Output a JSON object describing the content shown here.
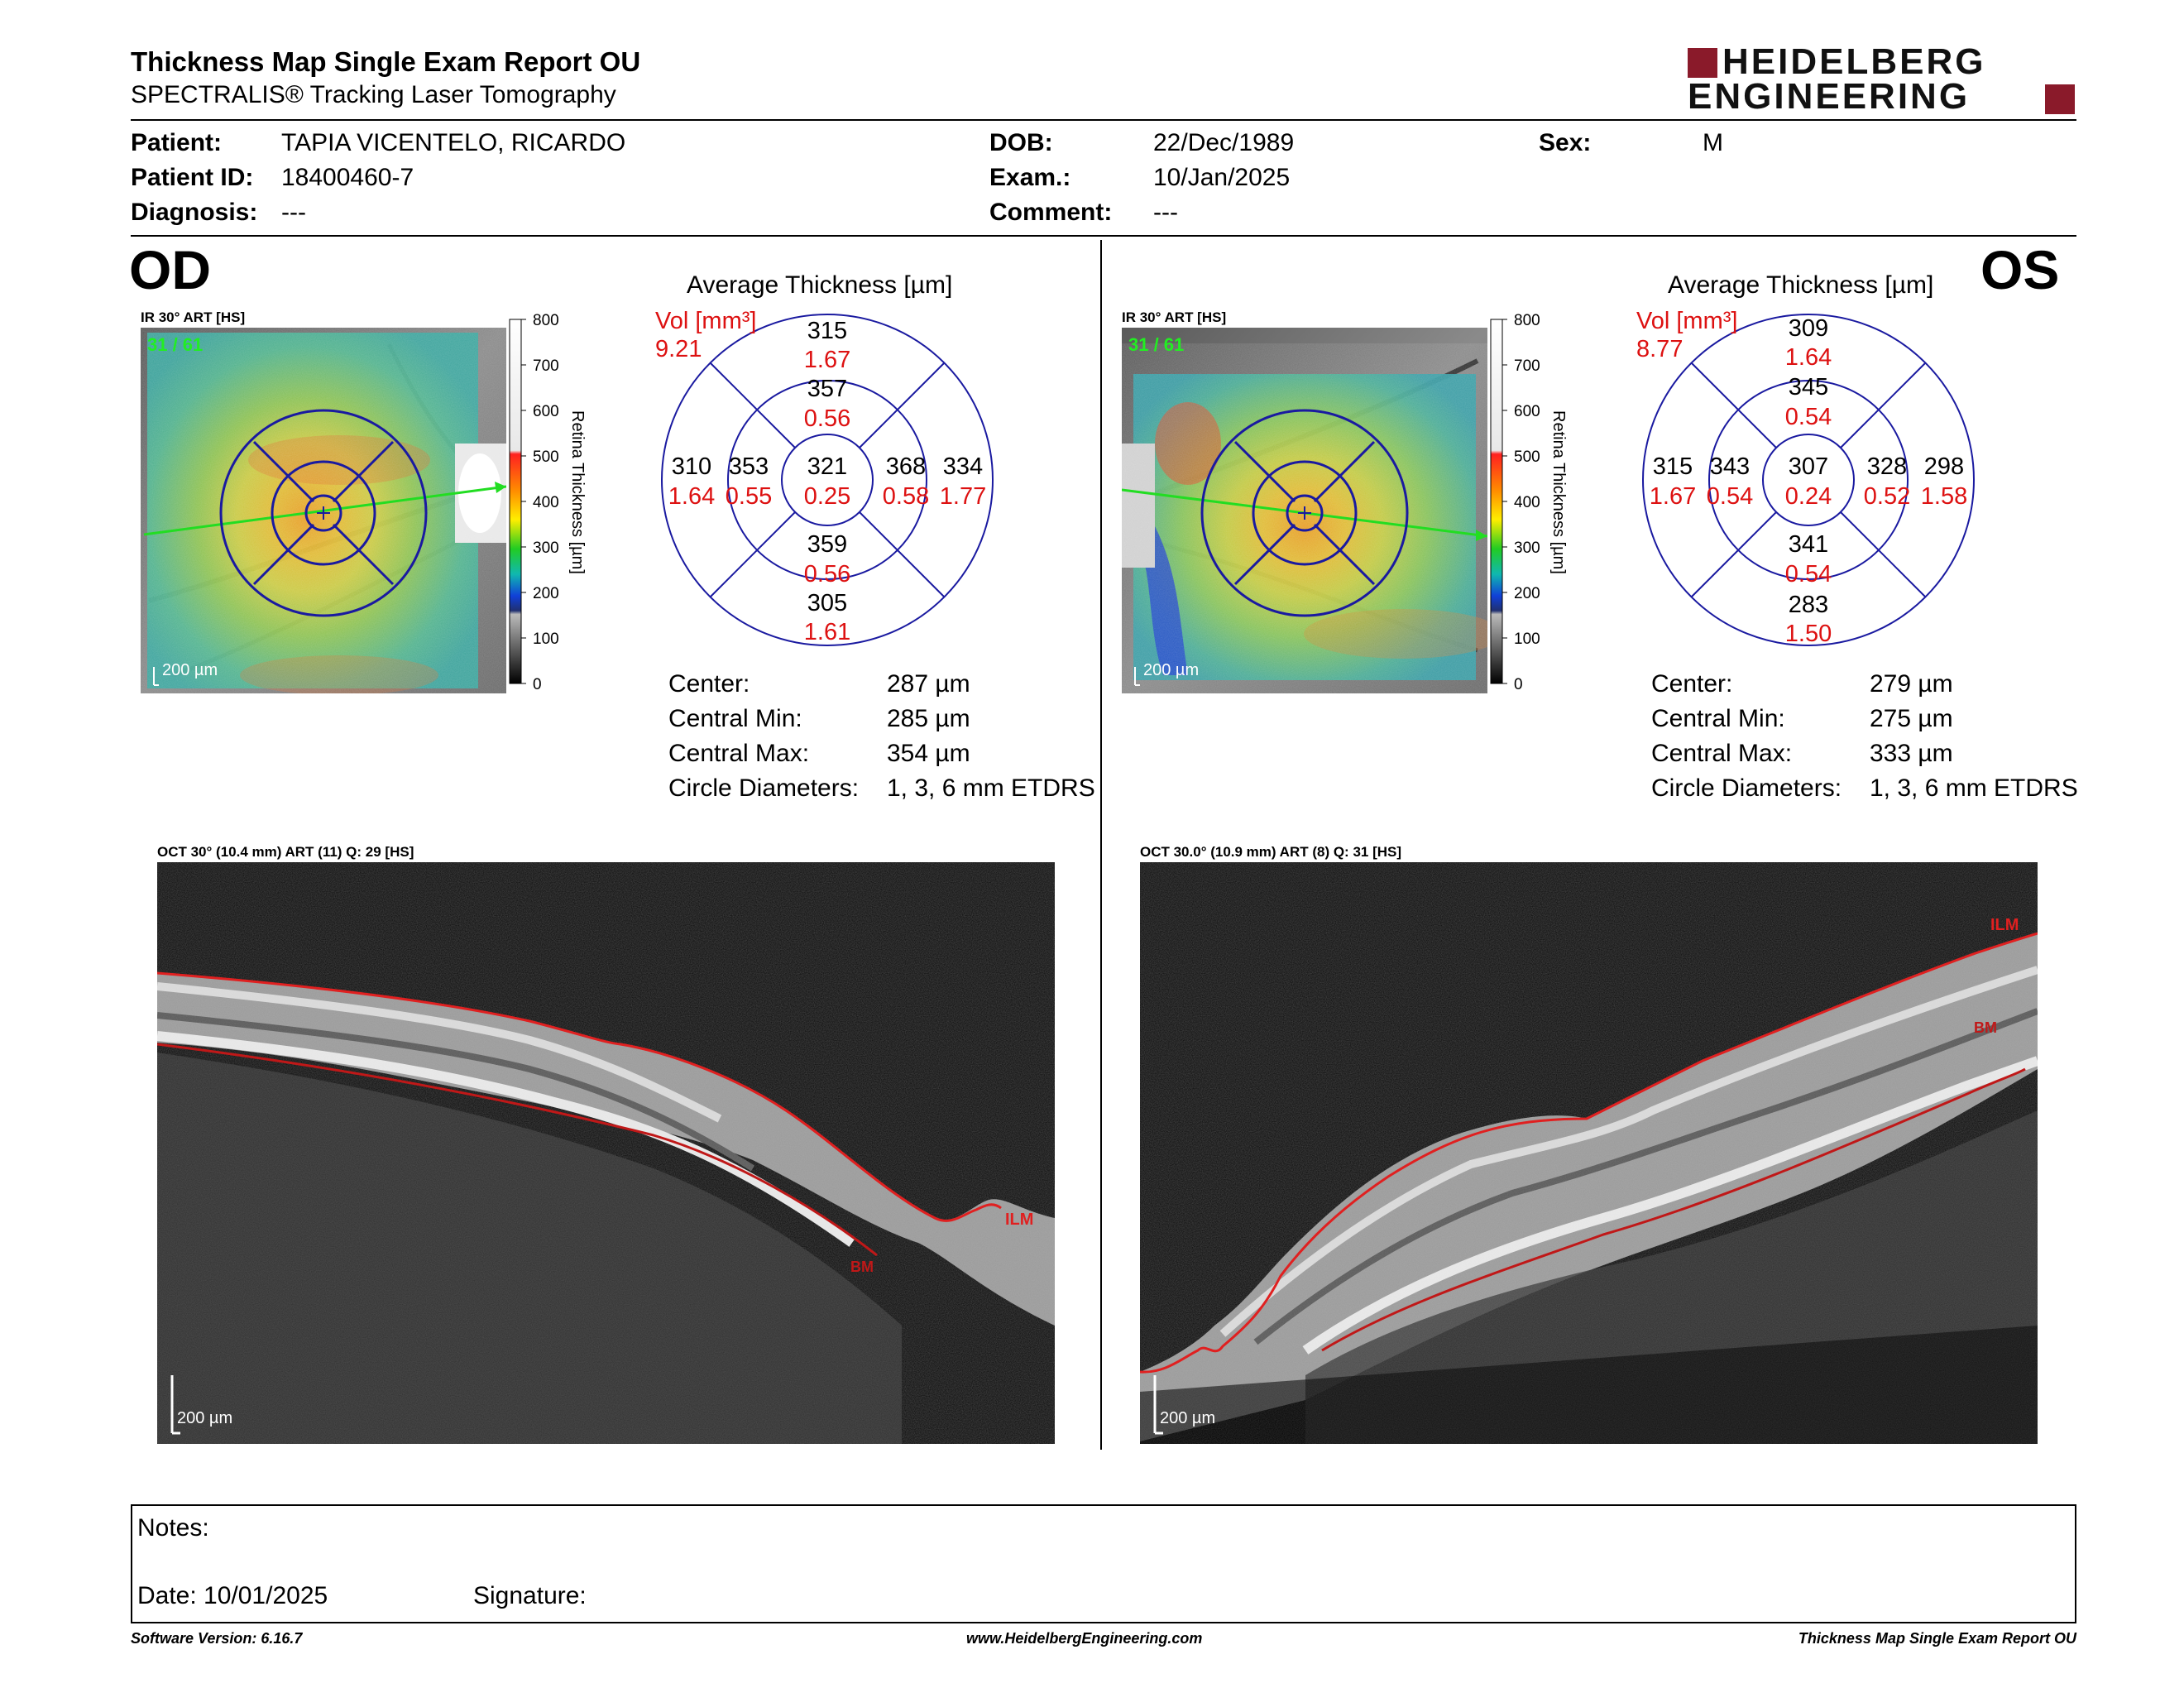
{
  "report": {
    "title": "Thickness Map Single Exam Report OU",
    "subtitle": "SPECTRALIS® Tracking Laser Tomography",
    "logo_line1": "HEIDELBERG",
    "logo_line2": "ENGINEERING"
  },
  "patient": {
    "patient_label": "Patient:",
    "patient_value": "TAPIA VICENTELO, RICARDO",
    "id_label": "Patient ID:",
    "id_value": "18400460-7",
    "diagnosis_label": "Diagnosis:",
    "diagnosis_value": "---",
    "dob_label": "DOB:",
    "dob_value": "22/Dec/1989",
    "exam_label": "Exam.:",
    "exam_value": "10/Jan/2025",
    "comment_label": "Comment:",
    "comment_value": "---",
    "sex_label": "Sex:",
    "sex_value": "M"
  },
  "colorbar": {
    "title": "Retina Thickness [µm]",
    "ticks": [
      "800",
      "700",
      "600",
      "500",
      "400",
      "300",
      "200",
      "100",
      "0"
    ]
  },
  "od": {
    "eye_label": "OD",
    "ir_caption": "IR 30° ART [HS]",
    "ir_counter": "31 / 61",
    "ir_scale": "200 µm",
    "avg_title": "Average Thickness [µm]",
    "vol_label": "Vol [mm³]",
    "vol_value": "9.21",
    "sectors": {
      "center": {
        "t": "321",
        "v": "0.25"
      },
      "inner_sup": {
        "t": "357",
        "v": "0.56"
      },
      "inner_inf": {
        "t": "359",
        "v": "0.56"
      },
      "inner_left": {
        "t": "353",
        "v": "0.55"
      },
      "inner_right": {
        "t": "368",
        "v": "0.58"
      },
      "outer_sup": {
        "t": "315",
        "v": "1.67"
      },
      "outer_inf": {
        "t": "305",
        "v": "1.61"
      },
      "outer_left": {
        "t": "310",
        "v": "1.64"
      },
      "outer_right": {
        "t": "334",
        "v": "1.77"
      }
    },
    "stats": {
      "center_label": "Center:",
      "center_value": "287 µm",
      "min_label": "Central Min:",
      "min_value": "285 µm",
      "max_label": "Central Max:",
      "max_value": "354 µm",
      "diam_label": "Circle Diameters:",
      "diam_value": "1, 3, 6 mm ETDRS"
    },
    "oct_caption": "OCT 30° (10.4 mm) ART (11) Q: 29 [HS]",
    "oct_scale": "200 µm",
    "ilm": "ILM",
    "bm": "BM"
  },
  "os": {
    "eye_label": "OS",
    "ir_caption": "IR 30° ART [HS]",
    "ir_counter": "31 / 61",
    "ir_scale": "200 µm",
    "avg_title": "Average Thickness [µm]",
    "vol_label": "Vol [mm³]",
    "vol_value": "8.77",
    "sectors": {
      "center": {
        "t": "307",
        "v": "0.24"
      },
      "inner_sup": {
        "t": "345",
        "v": "0.54"
      },
      "inner_inf": {
        "t": "341",
        "v": "0.54"
      },
      "inner_left": {
        "t": "343",
        "v": "0.54"
      },
      "inner_right": {
        "t": "328",
        "v": "0.52"
      },
      "outer_sup": {
        "t": "309",
        "v": "1.64"
      },
      "outer_inf": {
        "t": "283",
        "v": "1.50"
      },
      "outer_left": {
        "t": "315",
        "v": "1.67"
      },
      "outer_right": {
        "t": "298",
        "v": "1.58"
      }
    },
    "stats": {
      "center_label": "Center:",
      "center_value": "279 µm",
      "min_label": "Central Min:",
      "min_value": "275 µm",
      "max_label": "Central Max:",
      "max_value": "333 µm",
      "diam_label": "Circle Diameters:",
      "diam_value": "1, 3, 6 mm ETDRS"
    },
    "oct_caption": "OCT 30.0° (10.9 mm) ART (8) Q: 31 [HS]",
    "oct_scale": "200 µm",
    "ilm": "ILM",
    "bm": "BM"
  },
  "notes": {
    "notes_label": "Notes:",
    "date_label": "Date: 10/01/2025",
    "signature_label": "Signature:"
  },
  "footer": {
    "software": "Software Version: 6.16.7",
    "website": "www.HeidelbergEngineering.com",
    "report_name": "Thickness Map Single Exam Report OU"
  },
  "colors": {
    "grid_blue": "#1a1aa0",
    "volume_red": "#dd1111",
    "logo_red": "#8a1a2a"
  }
}
